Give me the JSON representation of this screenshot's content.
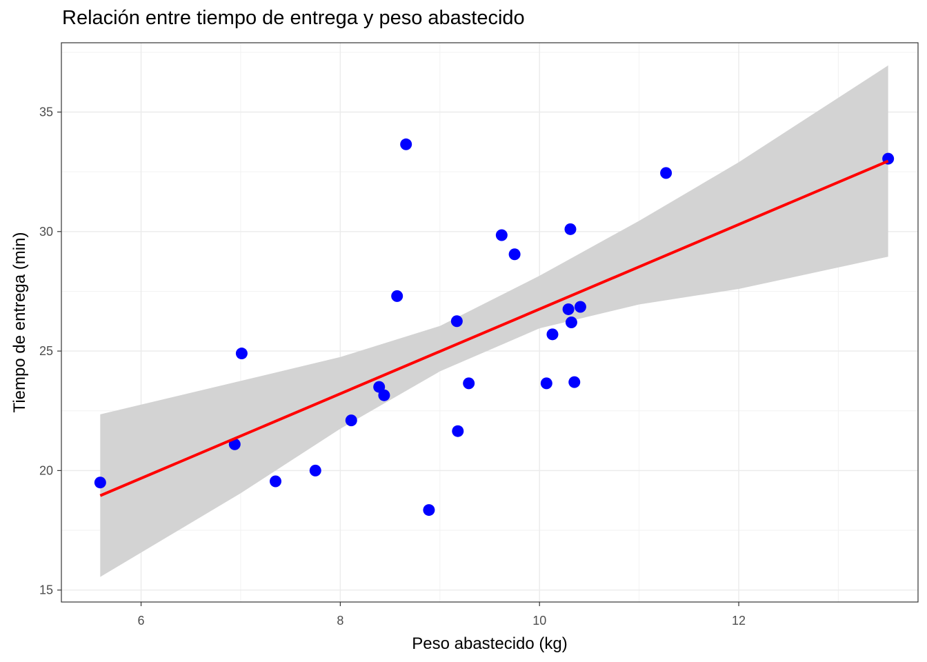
{
  "chart_data": {
    "type": "scatter",
    "title": "Relación entre tiempo de entrega y peso abastecido",
    "xlabel": "Peso abastecido (kg)",
    "ylabel": "Tiempo de entrega (min)",
    "xlim": [
      5.2,
      13.8
    ],
    "ylim": [
      14.5,
      37.9
    ],
    "xticks": [
      6,
      8,
      10,
      12
    ],
    "yticks": [
      15,
      20,
      25,
      30,
      35
    ],
    "grid": true,
    "legend": "none",
    "colors": {
      "points": "#0000ff",
      "line": "#ff0000",
      "ribbon": "#d3d3d3"
    },
    "series": [
      {
        "type": "scatter",
        "points": [
          {
            "x": 5.59,
            "y": 19.5
          },
          {
            "x": 6.94,
            "y": 21.1
          },
          {
            "x": 7.01,
            "y": 24.9
          },
          {
            "x": 7.35,
            "y": 19.55
          },
          {
            "x": 7.75,
            "y": 20.0
          },
          {
            "x": 8.11,
            "y": 22.1
          },
          {
            "x": 8.39,
            "y": 23.5
          },
          {
            "x": 8.44,
            "y": 23.15
          },
          {
            "x": 8.57,
            "y": 27.3
          },
          {
            "x": 8.66,
            "y": 33.65
          },
          {
            "x": 8.89,
            "y": 18.35
          },
          {
            "x": 9.17,
            "y": 26.25
          },
          {
            "x": 9.18,
            "y": 21.65
          },
          {
            "x": 9.29,
            "y": 23.65
          },
          {
            "x": 9.62,
            "y": 29.85
          },
          {
            "x": 9.75,
            "y": 29.05
          },
          {
            "x": 10.07,
            "y": 23.65
          },
          {
            "x": 10.13,
            "y": 25.7
          },
          {
            "x": 10.29,
            "y": 26.75
          },
          {
            "x": 10.31,
            "y": 30.1
          },
          {
            "x": 10.32,
            "y": 26.2
          },
          {
            "x": 10.35,
            "y": 23.7
          },
          {
            "x": 10.41,
            "y": 26.85
          },
          {
            "x": 11.27,
            "y": 32.45
          },
          {
            "x": 13.5,
            "y": 33.05
          }
        ]
      },
      {
        "type": "line",
        "fit": "linear",
        "x": [
          5.59,
          13.5
        ],
        "y": [
          18.95,
          32.95
        ]
      },
      {
        "type": "area",
        "role": "confidence-band",
        "x": [
          5.59,
          7.0,
          8.0,
          9.0,
          10.0,
          11.0,
          12.0,
          13.5
        ],
        "lower": [
          15.55,
          19.05,
          21.75,
          24.15,
          25.95,
          26.95,
          27.6,
          28.95
        ],
        "upper": [
          22.35,
          23.75,
          24.75,
          26.05,
          28.15,
          30.45,
          32.9,
          36.95
        ]
      }
    ]
  }
}
